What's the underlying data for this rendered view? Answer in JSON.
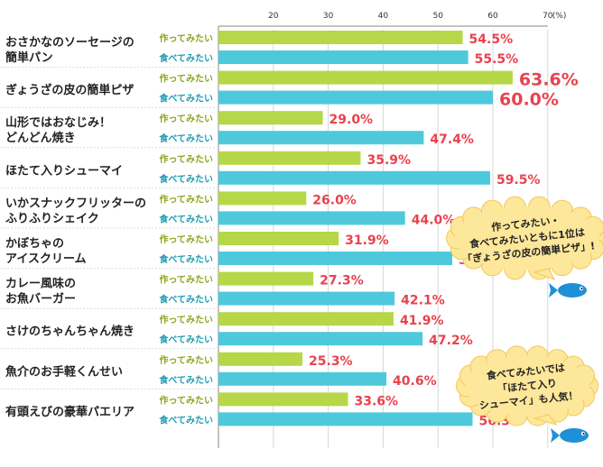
{
  "chart_data": {
    "type": "bar",
    "orientation": "horizontal",
    "categories": [
      [
        "おさかなのソーセージの",
        "簡単パン"
      ],
      [
        "ぎょうざの皮の簡単ピザ"
      ],
      [
        "山形ではおなじみ！",
        "どんどん焼き"
      ],
      [
        "ほたて入りシューマイ"
      ],
      [
        "いかスナックフリッターの",
        "ふりふりシェイク"
      ],
      [
        "かぼちゃの",
        "アイスクリーム"
      ],
      [
        "カレー風味の",
        "お魚バーガー"
      ],
      [
        "さけのちゃんちゃん焼き"
      ],
      [
        "魚介のお手軽くんせい"
      ],
      [
        "有頭えびの豪華パエリア"
      ]
    ],
    "series": [
      {
        "name": "作ってみたい",
        "color": "#b5d748",
        "values": [
          54.5,
          63.6,
          29.0,
          35.9,
          26.0,
          31.9,
          27.3,
          41.9,
          25.3,
          33.6
        ],
        "labels": [
          "54.5%",
          "63.6%",
          "29.0%",
          "35.9%",
          "26.0%",
          "31.9%",
          "27.3%",
          "41.9%",
          "25.3%",
          "33.6%"
        ]
      },
      {
        "name": "食べてみたい",
        "color": "#4ec9dc",
        "values": [
          55.5,
          60.0,
          47.4,
          59.5,
          44.0,
          52.6,
          42.1,
          47.2,
          40.6,
          56.3
        ],
        "labels": [
          "55.5%",
          "60.0%",
          "47.4%",
          "59.5%",
          "44.0%",
          "52.6%",
          "42.1%",
          "47.2%",
          "40.6%",
          "56.3%"
        ]
      }
    ],
    "highlight_category": 1,
    "xlim": [
      10,
      70
    ],
    "ticks": [
      20,
      30,
      40,
      50,
      60,
      70
    ],
    "tick_labels": [
      "20",
      "30",
      "40",
      "50",
      "60",
      "70"
    ],
    "tick_unit": "(%)",
    "grid": true
  },
  "callouts": [
    {
      "lines": [
        "作ってみたい・",
        "食べてみたいともに1位は",
        "「ぎょうざの皮の簡単ピザ」!"
      ],
      "bubble_color": "#fde79a",
      "fish_color": "#1e90d8",
      "fish": "fish-icon"
    },
    {
      "lines": [
        "食べてみたいでは",
        "「ほたて入り",
        "シューマイ」も人気！"
      ],
      "bubble_color": "#fde79a",
      "fish_color": "#1e90d8",
      "fish": "fish-icon"
    }
  ]
}
